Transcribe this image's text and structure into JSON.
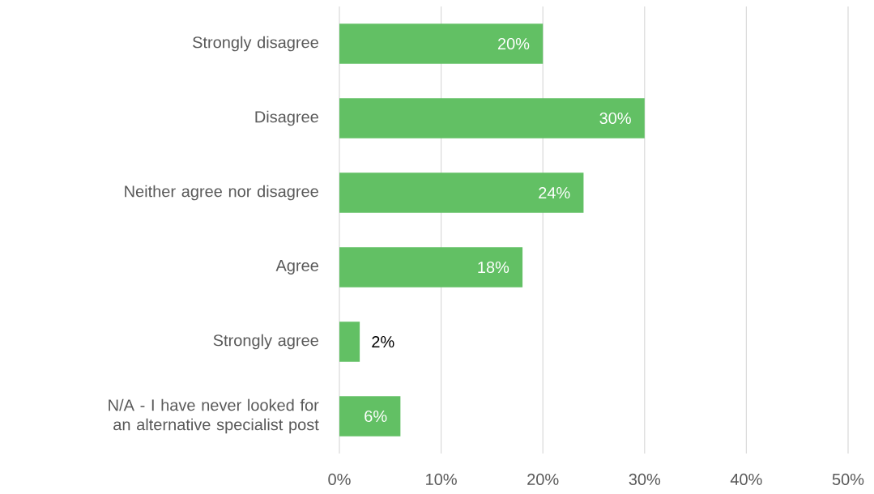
{
  "chart_data": {
    "type": "bar",
    "orientation": "horizontal",
    "categories": [
      "Strongly disagree",
      "Disagree",
      "Neither agree nor disagree",
      "Agree",
      "Strongly agree",
      "N/A - I have never looked for an alternative specialist post"
    ],
    "values": [
      20,
      30,
      24,
      18,
      2,
      6
    ],
    "value_labels": [
      "20%",
      "30%",
      "24%",
      "18%",
      "2%",
      "6%"
    ],
    "color": "#62c064",
    "xlim": [
      0,
      50
    ],
    "xticks": [
      {
        "value": 0,
        "label": "0%"
      },
      {
        "value": 10,
        "label": "10%"
      },
      {
        "value": 20,
        "label": "20%"
      },
      {
        "value": 30,
        "label": "30%"
      },
      {
        "value": 40,
        "label": "40%"
      },
      {
        "value": 50,
        "label": "50%"
      }
    ],
    "grid": "x"
  }
}
